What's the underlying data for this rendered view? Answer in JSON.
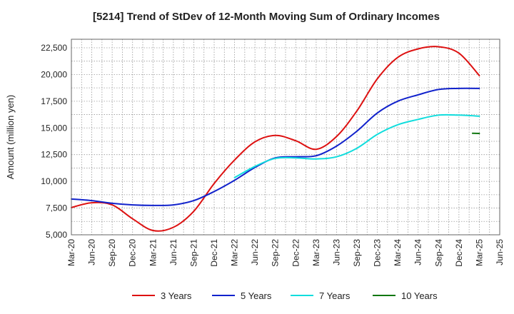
{
  "chart_data": {
    "type": "line",
    "title": "[5214]  Trend of StDev of 12-Month Moving Sum of Ordinary Incomes",
    "xlabel": "",
    "ylabel": "Amount (million yen)",
    "ylim": [
      5000,
      23300
    ],
    "yticks": [
      5000,
      7500,
      10000,
      12500,
      15000,
      17500,
      20000,
      22500
    ],
    "ytick_labels": [
      "5,000",
      "7,500",
      "10,000",
      "12,500",
      "15,000",
      "17,500",
      "20,000",
      "22,500"
    ],
    "x_tick_labels": [
      "Mar-20",
      "Jun-20",
      "Sep-20",
      "Dec-20",
      "Mar-21",
      "Jun-21",
      "Sep-21",
      "Dec-21",
      "Mar-22",
      "Jun-22",
      "Sep-22",
      "Dec-22",
      "Mar-23",
      "Jun-23",
      "Sep-23",
      "Dec-23",
      "Mar-24",
      "Jun-24",
      "Sep-24",
      "Dec-24",
      "Mar-25",
      "Jun-25"
    ],
    "x_range_months": [
      0,
      63
    ],
    "grid": true,
    "legend_position": "bottom",
    "series": [
      {
        "name": "3 Years",
        "color": "#dd1111",
        "x": [
          0,
          3,
          6,
          9,
          12,
          15,
          18,
          21,
          24,
          27,
          30,
          33,
          36,
          39,
          42,
          45,
          48,
          51,
          54,
          57,
          60
        ],
        "values": [
          7550,
          8000,
          7800,
          6500,
          5400,
          5700,
          7200,
          9800,
          12000,
          13700,
          14300,
          13800,
          13000,
          14200,
          16600,
          19600,
          21600,
          22400,
          22600,
          22000,
          19900
        ]
      },
      {
        "name": "5 Years",
        "color": "#1122cc",
        "x": [
          0,
          3,
          6,
          9,
          12,
          15,
          18,
          21,
          24,
          27,
          30,
          33,
          36,
          39,
          42,
          45,
          48,
          51,
          54,
          57,
          60
        ],
        "values": [
          8350,
          8200,
          7950,
          7800,
          7750,
          7800,
          8200,
          9050,
          10100,
          11300,
          12200,
          12300,
          12400,
          13300,
          14700,
          16400,
          17500,
          18100,
          18600,
          18700,
          18700
        ]
      },
      {
        "name": "7 Years",
        "color": "#11dddd",
        "x": [
          24,
          27,
          30,
          33,
          36,
          39,
          42,
          45,
          48,
          51,
          54,
          57,
          60
        ],
        "values": [
          10350,
          11400,
          12150,
          12200,
          12100,
          12300,
          13100,
          14400,
          15300,
          15800,
          16200,
          16200,
          16100
        ]
      },
      {
        "name": "10 Years",
        "color": "#117711",
        "x": [
          59,
          60
        ],
        "values": [
          14500,
          14480
        ]
      }
    ]
  }
}
